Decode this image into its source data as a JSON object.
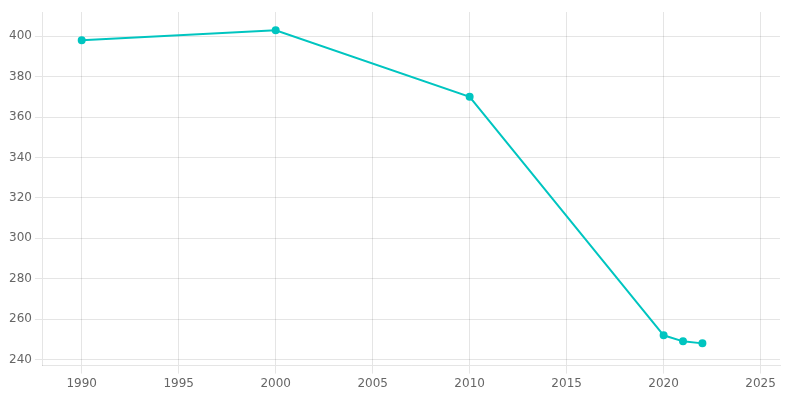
{
  "chart_data": {
    "type": "line",
    "x": [
      1990,
      2000,
      2010,
      2020,
      2021,
      2022
    ],
    "values": [
      398,
      403,
      370,
      252,
      249,
      248
    ],
    "color": "#00C5C0",
    "marker": "circle",
    "xlim": [
      1988,
      2026
    ],
    "ylim": [
      237,
      412
    ],
    "xticks": [
      1990,
      1995,
      2000,
      2005,
      2010,
      2015,
      2020,
      2025
    ],
    "yticks": [
      240,
      260,
      280,
      300,
      320,
      340,
      360,
      380,
      400
    ],
    "grid": true
  }
}
